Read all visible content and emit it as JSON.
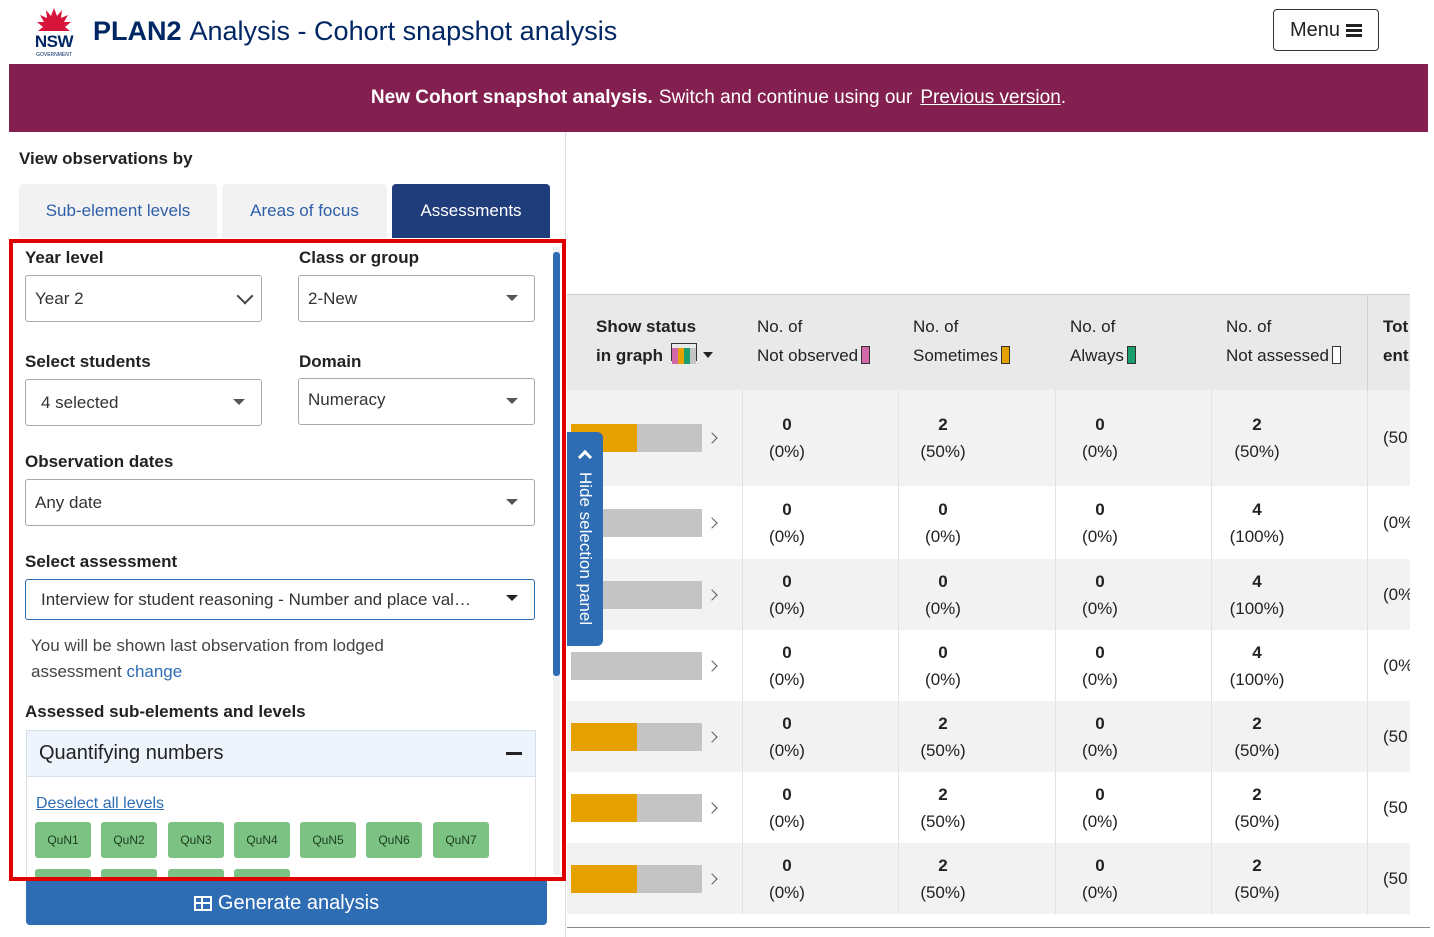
{
  "header": {
    "logo_text": "NSW",
    "logo_sub": "GOVERNMENT",
    "app_name": "PLAN2",
    "page_title": "Analysis - Cohort snapshot analysis",
    "menu_label": "Menu"
  },
  "banner": {
    "bold_text": "New Cohort snapshot analysis.",
    "text": "Switch and continue using our",
    "link": "Previous version",
    "trailing": "."
  },
  "panel": {
    "view_by_label": "View observations by",
    "tabs": [
      {
        "label": "Sub-element levels",
        "active": false
      },
      {
        "label": "Areas of focus",
        "active": false
      },
      {
        "label": "Assessments",
        "active": true
      }
    ],
    "year_level": {
      "label": "Year level",
      "value": "Year 2"
    },
    "class_group": {
      "label": "Class or group",
      "value": "2-New"
    },
    "students": {
      "label": "Select students",
      "value": "4 selected"
    },
    "domain": {
      "label": "Domain",
      "value": "Numeracy"
    },
    "obs_dates": {
      "label": "Observation dates",
      "value": "Any date"
    },
    "assessment": {
      "label": "Select assessment",
      "value": "Interview for student reasoning - Number and place val…"
    },
    "note_text": "You will be shown last observation from lodged assessment",
    "note_link": "change",
    "assessed_label": "Assessed sub-elements and levels",
    "accordion_title": "Quantifying numbers",
    "deselect_link": "Deselect all levels",
    "chips": [
      "QuN1",
      "QuN2",
      "QuN3",
      "QuN4",
      "QuN5",
      "QuN6",
      "QuN7"
    ],
    "generate_label": "Generate analysis",
    "hide_panel_label": "Hide selection panel"
  },
  "colors": {
    "banner": "#84204f",
    "primary": "#2e6db4",
    "tab_active": "#1f3d7a",
    "sometimes": "#e6a100",
    "not_assessed": "#c4c4c4",
    "always": "#1a9e6e",
    "not_observed": "#d268a8",
    "chip": "#7cc383"
  },
  "table": {
    "headers": {
      "status_line1": "Show status",
      "status_line2": "in graph",
      "not_observed_1": "No. of",
      "not_observed_2": "Not observed",
      "sometimes_1": "No. of",
      "sometimes_2": "Sometimes",
      "always_1": "No. of",
      "always_2": "Always",
      "not_assessed_1": "No. of",
      "not_assessed_2": "Not assessed",
      "total_1": "Tot",
      "total_2": "ent"
    },
    "rows": [
      {
        "sometimes_fraction": 0.5,
        "not_observed": "0",
        "not_observed_pct": "(0%)",
        "sometimes": "2",
        "sometimes_pct": "(50%)",
        "always": "0",
        "always_pct": "(0%)",
        "not_assessed": "2",
        "not_assessed_pct": "(50%)",
        "total_pct": "(50"
      },
      {
        "sometimes_fraction": 0,
        "not_observed": "0",
        "not_observed_pct": "(0%)",
        "sometimes": "0",
        "sometimes_pct": "(0%)",
        "always": "0",
        "always_pct": "(0%)",
        "not_assessed": "4",
        "not_assessed_pct": "(100%)",
        "total_pct": "(0%"
      },
      {
        "sometimes_fraction": 0,
        "not_observed": "0",
        "not_observed_pct": "(0%)",
        "sometimes": "0",
        "sometimes_pct": "(0%)",
        "always": "0",
        "always_pct": "(0%)",
        "not_assessed": "4",
        "not_assessed_pct": "(100%)",
        "total_pct": "(0%"
      },
      {
        "sometimes_fraction": 0,
        "not_observed": "0",
        "not_observed_pct": "(0%)",
        "sometimes": "0",
        "sometimes_pct": "(0%)",
        "always": "0",
        "always_pct": "(0%)",
        "not_assessed": "4",
        "not_assessed_pct": "(100%)",
        "total_pct": "(0%"
      },
      {
        "sometimes_fraction": 0.5,
        "not_observed": "0",
        "not_observed_pct": "(0%)",
        "sometimes": "2",
        "sometimes_pct": "(50%)",
        "always": "0",
        "always_pct": "(0%)",
        "not_assessed": "2",
        "not_assessed_pct": "(50%)",
        "total_pct": "(50"
      },
      {
        "sometimes_fraction": 0.5,
        "not_observed": "0",
        "not_observed_pct": "(0%)",
        "sometimes": "2",
        "sometimes_pct": "(50%)",
        "always": "0",
        "always_pct": "(0%)",
        "not_assessed": "2",
        "not_assessed_pct": "(50%)",
        "total_pct": "(50"
      },
      {
        "sometimes_fraction": 0.5,
        "not_observed": "0",
        "not_observed_pct": "(0%)",
        "sometimes": "2",
        "sometimes_pct": "(50%)",
        "always": "0",
        "always_pct": "(0%)",
        "not_assessed": "2",
        "not_assessed_pct": "(50%)",
        "total_pct": "(50"
      }
    ]
  }
}
